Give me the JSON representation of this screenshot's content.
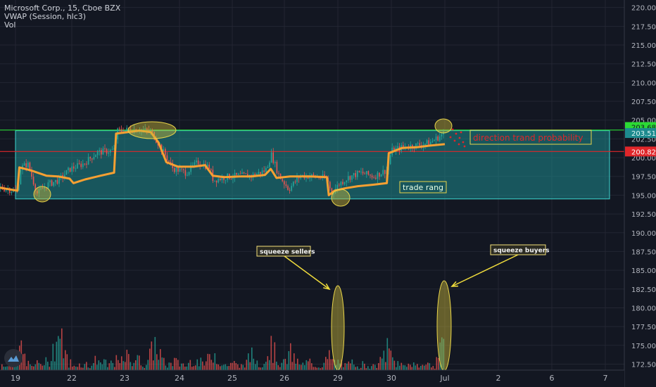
{
  "legend": {
    "symbol": "Microsoft Corp., 15, Cboe BZX",
    "indicator": "VWAP (Session, hlc3)",
    "volume": "Vol"
  },
  "colors": {
    "background": "#131722",
    "grid": "#232632",
    "candle_up": "#26a69a",
    "candle_down": "#ef5350",
    "vwap": "#f7a032",
    "trade_range_fill": "#1d8a8e",
    "trade_range_border": "#3ed6d0",
    "resistance_line": "#2bd934",
    "support_line": "#e0262a",
    "annotation_fill": "#c9b73a",
    "annotation_text": "#e0262a",
    "label_box": "#f5e27a"
  },
  "annotations": {
    "trade_range": "trade rang",
    "direction": "direction trand probability",
    "squeeze_sellers": "squeeze sellers",
    "squeeze_buyers": "squeeze buyers"
  },
  "price_labels": {
    "upper": "203.68",
    "current": "203.51",
    "lower": "200.82"
  },
  "chart_data": {
    "type": "candlestick",
    "x_ticks": [
      "19",
      "22",
      "23",
      "24",
      "25",
      "26",
      "29",
      "30",
      "Jul",
      "2",
      "6",
      "7"
    ],
    "y_ticks": [
      172.5,
      175.0,
      177.5,
      180.0,
      182.5,
      185.0,
      187.5,
      190.0,
      192.5,
      195.0,
      197.5,
      200.0,
      202.5,
      205.0,
      207.5,
      210.0,
      212.5,
      215.0,
      217.5,
      220.0
    ],
    "ylim": [
      171.7,
      221.0
    ],
    "price_path": [
      [
        0,
        196.0
      ],
      [
        0.9,
        195.5
      ],
      [
        1.0,
        198.5
      ],
      [
        1.4,
        199.2
      ],
      [
        1.9,
        195.2
      ],
      [
        2.4,
        196.4
      ],
      [
        3.0,
        197.0
      ],
      [
        3.6,
        198.5
      ],
      [
        4.3,
        199.2
      ],
      [
        5.0,
        200.7
      ],
      [
        5.9,
        201.0
      ],
      [
        6.0,
        203.5
      ],
      [
        6.6,
        203.7
      ],
      [
        7.2,
        203.8
      ],
      [
        7.8,
        203.4
      ],
      [
        8.3,
        201.3
      ],
      [
        8.9,
        198.6
      ],
      [
        9.6,
        198.0
      ],
      [
        10.2,
        199.4
      ],
      [
        10.8,
        198.7
      ],
      [
        11.0,
        197.0
      ],
      [
        11.6,
        197.4
      ],
      [
        12.4,
        197.6
      ],
      [
        13.0,
        197.6
      ],
      [
        13.7,
        198.3
      ],
      [
        14.0,
        200.4
      ],
      [
        14.4,
        197.6
      ],
      [
        14.9,
        195.8
      ],
      [
        15.5,
        197.6
      ],
      [
        16.2,
        197.5
      ],
      [
        16.9,
        197.2
      ],
      [
        17.1,
        195.2
      ],
      [
        17.5,
        196.5
      ],
      [
        18.0,
        197.4
      ],
      [
        18.6,
        198.0
      ],
      [
        19.3,
        197.5
      ],
      [
        20.0,
        198.4
      ],
      [
        20.2,
        200.9
      ],
      [
        20.8,
        201.4
      ],
      [
        21.6,
        201.7
      ],
      [
        22.2,
        202.0
      ],
      [
        22.8,
        203.0
      ],
      [
        23.0,
        203.5
      ]
    ],
    "vwap": [
      [
        0,
        196.0
      ],
      [
        0.9,
        195.6
      ],
      [
        1.0,
        198.7
      ],
      [
        1.6,
        198.3
      ],
      [
        2.4,
        197.6
      ],
      [
        3.0,
        197.5
      ],
      [
        3.6,
        197.2
      ],
      [
        3.8,
        196.6
      ],
      [
        4.4,
        197.1
      ],
      [
        5.2,
        197.6
      ],
      [
        5.9,
        198.0
      ],
      [
        6.0,
        203.2
      ],
      [
        6.6,
        203.4
      ],
      [
        7.2,
        203.6
      ],
      [
        7.8,
        203.4
      ],
      [
        8.2,
        202.0
      ],
      [
        8.6,
        199.4
      ],
      [
        9.2,
        198.8
      ],
      [
        10.0,
        198.8
      ],
      [
        10.6,
        199.0
      ],
      [
        11.0,
        197.6
      ],
      [
        11.6,
        197.4
      ],
      [
        12.4,
        197.5
      ],
      [
        13.0,
        197.5
      ],
      [
        13.7,
        197.7
      ],
      [
        14.0,
        198.5
      ],
      [
        14.3,
        197.3
      ],
      [
        15.0,
        197.5
      ],
      [
        16.0,
        197.5
      ],
      [
        16.9,
        197.4
      ],
      [
        17.0,
        195.0
      ],
      [
        17.3,
        195.6
      ],
      [
        17.8,
        195.9
      ],
      [
        18.5,
        196.2
      ],
      [
        19.3,
        196.4
      ],
      [
        20.0,
        196.6
      ],
      [
        20.1,
        200.6
      ],
      [
        20.8,
        201.3
      ],
      [
        21.6,
        201.4
      ],
      [
        22.2,
        201.6
      ],
      [
        23.0,
        201.8
      ]
    ],
    "volume": [
      [
        0.0,
        2
      ],
      [
        1.0,
        22
      ],
      [
        2.0,
        8
      ],
      [
        3.0,
        40
      ],
      [
        4.0,
        7
      ],
      [
        5.0,
        12
      ],
      [
        6.0,
        10
      ],
      [
        6.5,
        15
      ],
      [
        7.0,
        14
      ],
      [
        8.0,
        28
      ],
      [
        9.0,
        10
      ],
      [
        10.0,
        13
      ],
      [
        11.0,
        20
      ],
      [
        12.0,
        8
      ],
      [
        13.0,
        16
      ],
      [
        14.0,
        25
      ],
      [
        15.0,
        18
      ],
      [
        16.0,
        9
      ],
      [
        17.0,
        14
      ],
      [
        18.0,
        6
      ],
      [
        19.0,
        5
      ],
      [
        20.0,
        22
      ],
      [
        21.0,
        7
      ],
      [
        22.0,
        6
      ],
      [
        23.0,
        32
      ]
    ],
    "trade_range": [
      194.5,
      203.6
    ],
    "resistance": 203.68,
    "support": 200.82
  }
}
